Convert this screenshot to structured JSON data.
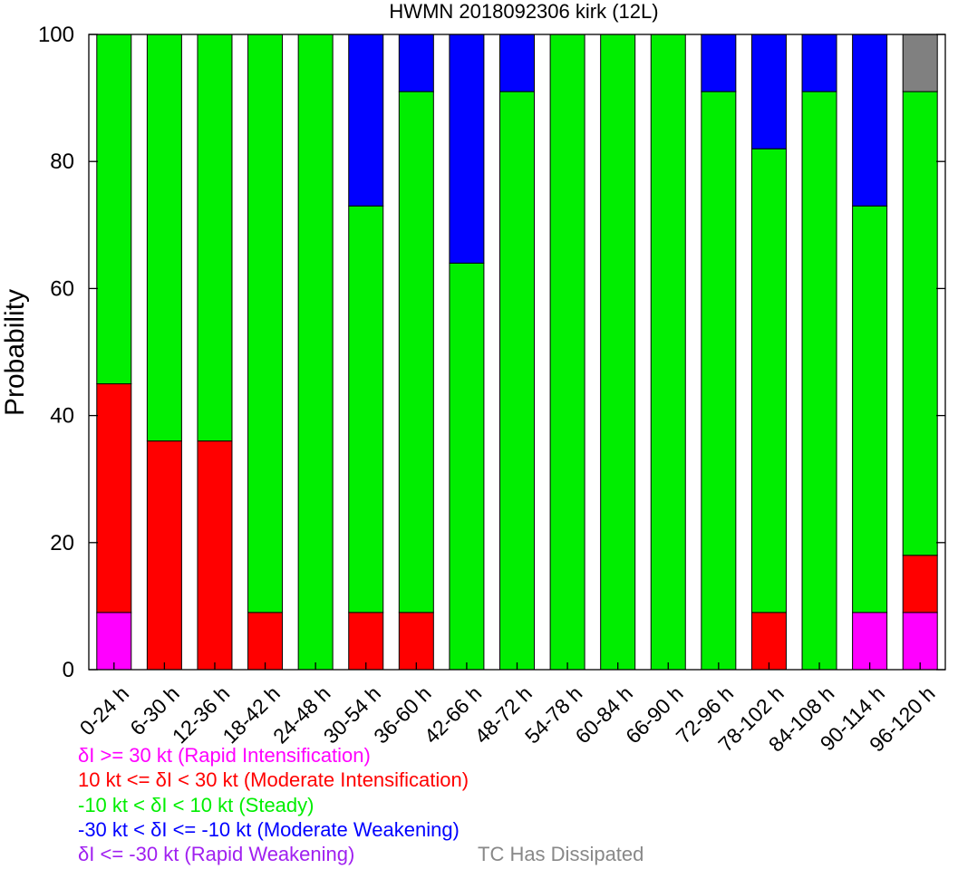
{
  "chart_data": {
    "type": "bar",
    "title": "HWMN 2018092306 kirk (12L)",
    "ylabel": "Probability",
    "xlabel": "",
    "ylim": [
      0,
      100
    ],
    "yticks": [
      0,
      20,
      40,
      60,
      80,
      100
    ],
    "stacked": true,
    "categories": [
      "0-24 h",
      "6-30 h",
      "12-36 h",
      "18-42 h",
      "24-48 h",
      "30-54 h",
      "36-60 h",
      "42-66 h",
      "48-72 h",
      "54-78 h",
      "60-84 h",
      "66-90 h",
      "72-96 h",
      "78-102 h",
      "84-108 h",
      "90-114 h",
      "96-120 h"
    ],
    "series": [
      {
        "key": "ri",
        "color": "#ff00ff",
        "values": [
          9,
          0,
          0,
          0,
          0,
          0,
          0,
          0,
          0,
          0,
          0,
          0,
          0,
          0,
          0,
          9,
          9
        ]
      },
      {
        "key": "mi",
        "color": "#ff0000",
        "values": [
          36,
          36,
          36,
          9,
          0,
          9,
          9,
          0,
          0,
          0,
          0,
          0,
          0,
          9,
          0,
          0,
          9
        ]
      },
      {
        "key": "steady",
        "color": "#00ee00",
        "values": [
          55,
          64,
          64,
          91,
          100,
          64,
          82,
          64,
          91,
          100,
          100,
          100,
          91,
          73,
          91,
          64,
          73
        ]
      },
      {
        "key": "mw",
        "color": "#0000ff",
        "values": [
          0,
          0,
          0,
          0,
          0,
          27,
          9,
          36,
          9,
          0,
          0,
          0,
          9,
          18,
          9,
          27,
          0
        ]
      },
      {
        "key": "rw",
        "color": "#a020f0",
        "values": [
          0,
          0,
          0,
          0,
          0,
          0,
          0,
          0,
          0,
          0,
          0,
          0,
          0,
          0,
          0,
          0,
          0
        ]
      },
      {
        "key": "dissipated",
        "color": "#808080",
        "values": [
          0,
          0,
          0,
          0,
          0,
          0,
          0,
          0,
          0,
          0,
          0,
          0,
          0,
          0,
          0,
          0,
          9
        ]
      }
    ],
    "legend": [
      {
        "text": "δI >= 30 kt (Rapid Intensification)",
        "color": "#ff00ff"
      },
      {
        "text": "10 kt <= δI < 30 kt (Moderate Intensification)",
        "color": "#ff0000"
      },
      {
        "text": "-10 kt < δI < 10 kt (Steady)",
        "color": "#00ee00"
      },
      {
        "text": "-30 kt < δI <= -10 kt (Moderate Weakening)",
        "color": "#0000ff"
      },
      {
        "text": "δI <= -30 kt (Rapid Weakening)",
        "color": "#a020f0"
      },
      {
        "text": "TC Has Dissipated",
        "color": "#888888"
      }
    ],
    "grid": false,
    "legend_placement": "bottom"
  }
}
